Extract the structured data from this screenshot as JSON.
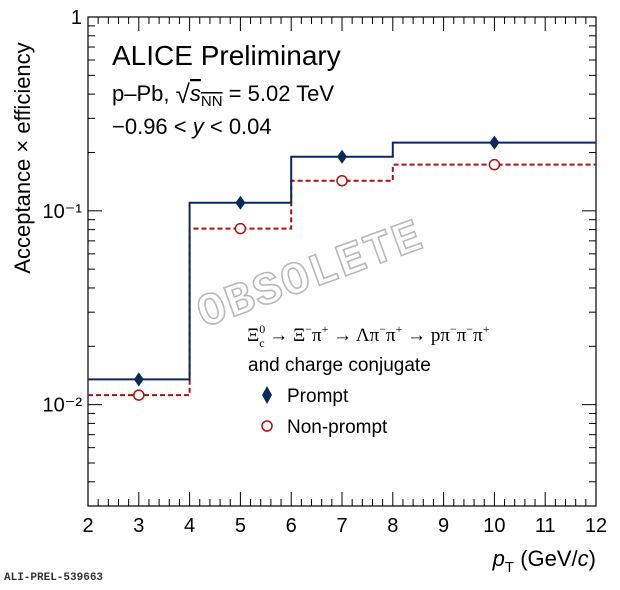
{
  "chart_data": {
    "type": "step",
    "y_scale": "log",
    "xlim": [
      2,
      12
    ],
    "ylim": [
      0.003,
      1
    ],
    "xlabel": "p_T (GeV/c)",
    "ylabel": "Acceptance × efficiency",
    "x_ticks": [
      "2",
      "3",
      "4",
      "5",
      "6",
      "7",
      "8",
      "9",
      "10",
      "11",
      "12"
    ],
    "y_tick_labels": [
      {
        "value": 1,
        "label": "1"
      },
      {
        "value": 0.1,
        "label": "10⁻¹"
      },
      {
        "value": 0.01,
        "label": "10⁻²"
      }
    ],
    "bin_edges": [
      2,
      4,
      6,
      8,
      12
    ],
    "series": [
      {
        "name": "Prompt",
        "line_color": "#0b2a5b",
        "line_style": "solid",
        "marker": "diamond-filled",
        "bin_values": [
          0.0135,
          0.11,
          0.19,
          0.225
        ],
        "points": [
          {
            "x": 3,
            "y": 0.0135
          },
          {
            "x": 5,
            "y": 0.11
          },
          {
            "x": 7,
            "y": 0.19
          },
          {
            "x": 10,
            "y": 0.225
          }
        ]
      },
      {
        "name": "Non-prompt",
        "line_color": "#aa1111",
        "line_style": "dashed",
        "marker": "circle-open",
        "bin_values": [
          0.0112,
          0.081,
          0.143,
          0.173
        ],
        "points": [
          {
            "x": 3,
            "y": 0.0112
          },
          {
            "x": 5,
            "y": 0.081
          },
          {
            "x": 7,
            "y": 0.143
          },
          {
            "x": 10,
            "y": 0.173
          }
        ]
      }
    ],
    "annotations": {
      "title": "ALICE Preliminary",
      "system": "p–Pb, √sNN = 5.02 TeV",
      "rapidity": "−0.96 < y < 0.04",
      "decay": "Ξc0 → Ξ−π+ → Λπ−π+ → pπ−π−π+",
      "decay_note": "and charge conjugate",
      "watermark": "OBSOLETE",
      "figure_id": "ALI-PREL-539663"
    },
    "legend_placement": "lower-center"
  }
}
